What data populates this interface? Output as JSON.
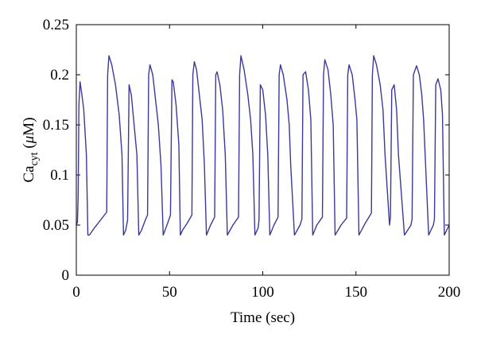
{
  "chart_data": {
    "type": "line",
    "title": "",
    "xlabel": "Time (sec)",
    "ylabel": {
      "base": "Ca",
      "sub": "cyt",
      "unit_open": " (",
      "mu": "μ",
      "unit_rest": "M)"
    },
    "xlim": [
      0,
      200
    ],
    "ylim": [
      0,
      0.25
    ],
    "xticks": [
      0,
      50,
      100,
      150,
      200
    ],
    "yticks": [
      0,
      0.05,
      0.1,
      0.15,
      0.2,
      0.25
    ],
    "xtick_labels": [
      "0",
      "50",
      "100",
      "150",
      "200"
    ],
    "ytick_labels": [
      "0",
      "0.05",
      "0.1",
      "0.15",
      "0.2",
      "0.25"
    ],
    "grid": false,
    "legend": "none",
    "line_color": "#3b3a9a",
    "series": [
      {
        "x": [
          0,
          0.6,
          1.0,
          1.4,
          2.0,
          3.0,
          4.0,
          5.4,
          6.2,
          7.0,
          10,
          13,
          16.3,
          16.8,
          17.5,
          19,
          21,
          23,
          24.5,
          25.3,
          26.5,
          27.5,
          28.3,
          29.5,
          31,
          32.5,
          33.5,
          35,
          37,
          38.2,
          38.8,
          39.5,
          41,
          42.5,
          44,
          45.4,
          46.6,
          49,
          50.5,
          51.3,
          52,
          53.5,
          55,
          55.8,
          57,
          59.5,
          62,
          62.5,
          63.3,
          64.5,
          66,
          67.5,
          68.7,
          69.8,
          72,
          74.2,
          74.8,
          75.5,
          77,
          78.5,
          79.9,
          81,
          84,
          87,
          87.6,
          88.3,
          90,
          92,
          93.5,
          94.7,
          95.8,
          97.5,
          98,
          98.7,
          100,
          101.5,
          102.7,
          103.8,
          106,
          108.2,
          108.8,
          109.5,
          111,
          113,
          114.2,
          115,
          117,
          120,
          121,
          121.6,
          123,
          124.5,
          125.8,
          126.8,
          129,
          132,
          132.6,
          133.3,
          135,
          136.5,
          137.8,
          138.8,
          142,
          145,
          145.6,
          146.3,
          148,
          149.5,
          150.5,
          151.6,
          155,
          158.3,
          158.8,
          159.5,
          161,
          163,
          164.5,
          165.6,
          168,
          168.5,
          169.2,
          170.5,
          171.8,
          172.8,
          176,
          179.5,
          180.1,
          180.8,
          182.5,
          184,
          185.3,
          186.3,
          189,
          191.5,
          192.1,
          192.8,
          194,
          195.5,
          196.4,
          197.4,
          200
        ],
        "y": [
          0.05,
          0.053,
          0.08,
          0.17,
          0.193,
          0.18,
          0.165,
          0.12,
          0.04,
          0.04,
          0.048,
          0.055,
          0.063,
          0.2,
          0.219,
          0.21,
          0.19,
          0.16,
          0.12,
          0.04,
          0.045,
          0.055,
          0.19,
          0.18,
          0.15,
          0.12,
          0.04,
          0.045,
          0.055,
          0.06,
          0.2,
          0.21,
          0.2,
          0.175,
          0.15,
          0.11,
          0.04,
          0.052,
          0.06,
          0.195,
          0.193,
          0.17,
          0.13,
          0.04,
          0.045,
          0.052,
          0.06,
          0.2,
          0.213,
          0.205,
          0.18,
          0.155,
          0.11,
          0.04,
          0.05,
          0.058,
          0.2,
          0.203,
          0.19,
          0.165,
          0.12,
          0.04,
          0.05,
          0.058,
          0.2,
          0.219,
          0.205,
          0.18,
          0.155,
          0.12,
          0.04,
          0.047,
          0.055,
          0.19,
          0.185,
          0.16,
          0.12,
          0.04,
          0.05,
          0.058,
          0.2,
          0.21,
          0.2,
          0.175,
          0.15,
          0.11,
          0.04,
          0.05,
          0.056,
          0.2,
          0.203,
          0.185,
          0.155,
          0.04,
          0.05,
          0.058,
          0.2,
          0.215,
          0.205,
          0.18,
          0.15,
          0.04,
          0.05,
          0.057,
          0.2,
          0.21,
          0.2,
          0.175,
          0.155,
          0.04,
          0.052,
          0.062,
          0.2,
          0.219,
          0.21,
          0.19,
          0.165,
          0.12,
          0.05,
          0.058,
          0.185,
          0.19,
          0.165,
          0.12,
          0.04,
          0.05,
          0.056,
          0.2,
          0.209,
          0.2,
          0.18,
          0.155,
          0.04,
          0.05,
          0.056,
          0.19,
          0.196,
          0.185,
          0.16,
          0.04,
          0.05
        ]
      }
    ]
  }
}
